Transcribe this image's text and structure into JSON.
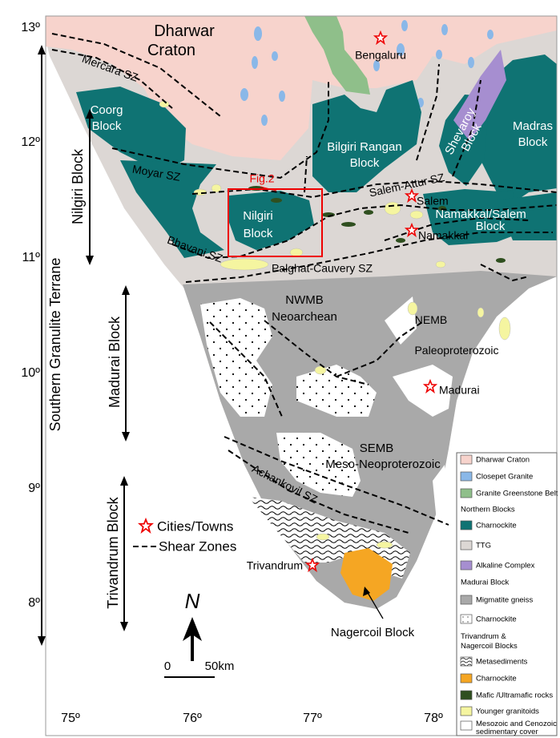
{
  "map": {
    "latitudes": [
      "13º",
      "12º",
      "11º",
      "10º",
      "9º",
      "8º"
    ],
    "longitudes": [
      "75º",
      "76º",
      "77º",
      "78º"
    ],
    "labels": {
      "dharwar": [
        "Dharwar",
        "Craton"
      ],
      "coorg": [
        "Coorg",
        "Block"
      ],
      "bilgiri": [
        "Bilgiri Rangan",
        "Block"
      ],
      "shevaroy": [
        "Shevaroy",
        "Block"
      ],
      "madras": [
        "Madras",
        "Block"
      ],
      "nilgiri": [
        "Nilgiri",
        "Block"
      ],
      "namakkal_salem": [
        "Namakkal/Salem",
        "Block"
      ],
      "nwmb": [
        "NWMB",
        "Neoarchean"
      ],
      "nemb": [
        "NEMB",
        "Paleoproterozoic"
      ],
      "semb": [
        "SEMB",
        "Meso-Neoproterozoic"
      ],
      "nagercoil": "Nagercoil Block",
      "fig": "Fig.2"
    },
    "shear_zones": {
      "mercara": "Mercara SZ",
      "moyar": "Moyar SZ",
      "salem_attur": "Salem-Attur SZ",
      "bhavani": "Bhavani SZ",
      "palghat": "Palghat-Cauvery SZ",
      "achankovil": "Achankovil SZ"
    },
    "cities": [
      "Bengaluru",
      "Salem",
      "Namakkal",
      "Madurai",
      "Trivandrum"
    ],
    "side_labels": [
      "Southern Granulite Terrane",
      "Nilgiri Block",
      "Madurai Block",
      "Trivandrum Block"
    ]
  },
  "key": {
    "cities": "Cities/Towns",
    "shear_zones": "Shear Zones"
  },
  "scale": {
    "north": "N",
    "start": "0",
    "end": "50km"
  },
  "legend": {
    "dharwar": "Dharwar Craton",
    "closepet": "Closepet Granite",
    "greenstone": "Granite Greenstone Belt",
    "northern": "Northern Blocks",
    "n_charnockite": "Charnockite",
    "ttg": "TTG",
    "alkaline": "Alkaline Complex",
    "madurai": "Madurai Block",
    "migmatite": "Migmatite gneiss",
    "m_charnockite": "Charnockite",
    "trivandrum": [
      "Trivandrum &",
      "Nagercoil Blocks"
    ],
    "metasediments": "Metasediments",
    "t_charnockite": "Charnockite",
    "mafic": "Mafic /Ultramafic rocks",
    "granitoids": "Younger granitoids",
    "cover": [
      "Mesozoic and Cenozoic",
      "sedimentary cover"
    ]
  }
}
